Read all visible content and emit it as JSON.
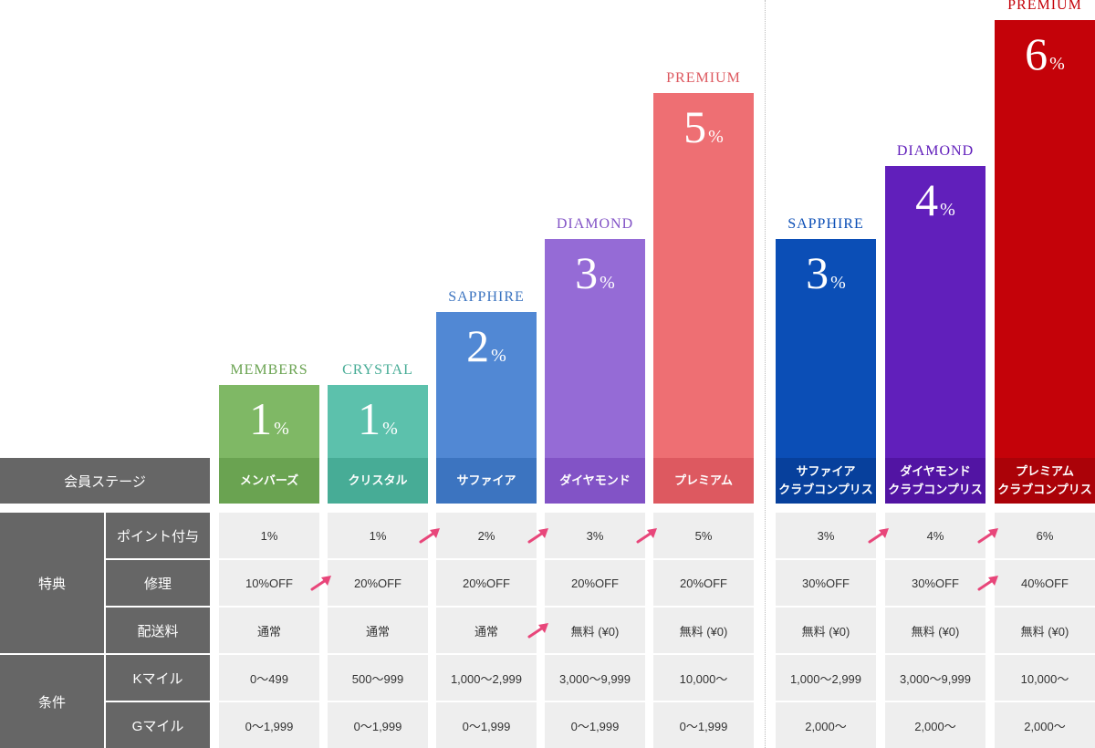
{
  "labels": {
    "stage": "会員ステージ",
    "benefits": "特典",
    "conditions": "条件",
    "points": "ポイント付与",
    "repair": "修理",
    "shipping": "配送料",
    "kmile": "Kマイル",
    "gmile": "Gマイル"
  },
  "tiers": [
    {
      "name": "MEMBERS",
      "pct_num": "1",
      "pct_unit": "%",
      "stage": "メンバーズ",
      "stage2": "",
      "points": "1%",
      "repair": "10%OFF",
      "shipping": "通常",
      "kmile": "0〜499",
      "gmile": "0〜1,999",
      "bar_color": "#7fb865",
      "stage_color": "#6aa351",
      "name_color": "#6aa351",
      "bar_level": 1
    },
    {
      "name": "CRYSTAL",
      "pct_num": "1",
      "pct_unit": "%",
      "stage": "クリスタル",
      "stage2": "",
      "points": "1%",
      "repair": "20%OFF",
      "shipping": "通常",
      "kmile": "500〜999",
      "gmile": "0〜1,999",
      "bar_color": "#5cc1ac",
      "stage_color": "#47ac96",
      "name_color": "#47ac96",
      "bar_level": 1
    },
    {
      "name": "SAPPHIRE",
      "pct_num": "2",
      "pct_unit": "%",
      "stage": "サファイア",
      "stage2": "",
      "points": "2%",
      "repair": "20%OFF",
      "shipping": "通常",
      "kmile": "1,000〜2,999",
      "gmile": "0〜1,999",
      "bar_color": "#5188d4",
      "stage_color": "#3c74c0",
      "name_color": "#3c74c0",
      "bar_level": 2
    },
    {
      "name": "DIAMOND",
      "pct_num": "3",
      "pct_unit": "%",
      "stage": "ダイヤモンド",
      "stage2": "",
      "points": "3%",
      "repair": "20%OFF",
      "shipping": "無料 (¥0)",
      "kmile": "3,000〜9,999",
      "gmile": "0〜1,999",
      "bar_color": "#956bd6",
      "stage_color": "#8253c6",
      "name_color": "#8253c6",
      "bar_level": 3
    },
    {
      "name": "PREMIUM",
      "pct_num": "5",
      "pct_unit": "%",
      "stage": "プレミアム",
      "stage2": "",
      "points": "5%",
      "repair": "20%OFF",
      "shipping": "無料 (¥0)",
      "kmile": "10,000〜",
      "gmile": "0〜1,999",
      "bar_color": "#ee6f73",
      "stage_color": "#dd5960",
      "name_color": "#dd5960",
      "bar_level": 5
    },
    {
      "name": "SAPPHIRE",
      "pct_num": "3",
      "pct_unit": "%",
      "stage": "サファイア",
      "stage2": "クラブコンプリス",
      "points": "3%",
      "repair": "30%OFF",
      "shipping": "無料 (¥0)",
      "kmile": "1,000〜2,999",
      "gmile": "2,000〜",
      "bar_color": "#0b4eb6",
      "stage_color": "#07409c",
      "name_color": "#0b4eb6",
      "bar_level": 3
    },
    {
      "name": "DIAMOND",
      "pct_num": "4",
      "pct_unit": "%",
      "stage": "ダイヤモンド",
      "stage2": "クラブコンプリス",
      "points": "4%",
      "repair": "30%OFF",
      "shipping": "無料 (¥0)",
      "kmile": "3,000〜9,999",
      "gmile": "2,000〜",
      "bar_color": "#611fbb",
      "stage_color": "#5214a3",
      "name_color": "#611fbb",
      "bar_level": 4
    },
    {
      "name": "PREMIUM",
      "pct_num": "6",
      "pct_unit": "%",
      "stage": "プレミアム",
      "stage2": "クラブコンプリス",
      "points": "6%",
      "repair": "40%OFF",
      "shipping": "無料 (¥0)",
      "kmile": "10,000〜",
      "gmile": "2,000〜",
      "bar_color": "#c40209",
      "stage_color": "#ab0208",
      "name_color": "#c40209",
      "bar_level": 6
    }
  ],
  "arrows": [
    {
      "row": "points",
      "before_col": 2
    },
    {
      "row": "points",
      "before_col": 3
    },
    {
      "row": "points",
      "before_col": 4
    },
    {
      "row": "points",
      "before_col": 6
    },
    {
      "row": "points",
      "before_col": 7
    },
    {
      "row": "repair",
      "before_col": 1
    },
    {
      "row": "repair",
      "before_col": 7
    },
    {
      "row": "shipping",
      "before_col": 3
    }
  ],
  "colors": {
    "header_bg": "#666666",
    "cell_bg": "#eeeeee",
    "arrow": "#e8467a"
  }
}
